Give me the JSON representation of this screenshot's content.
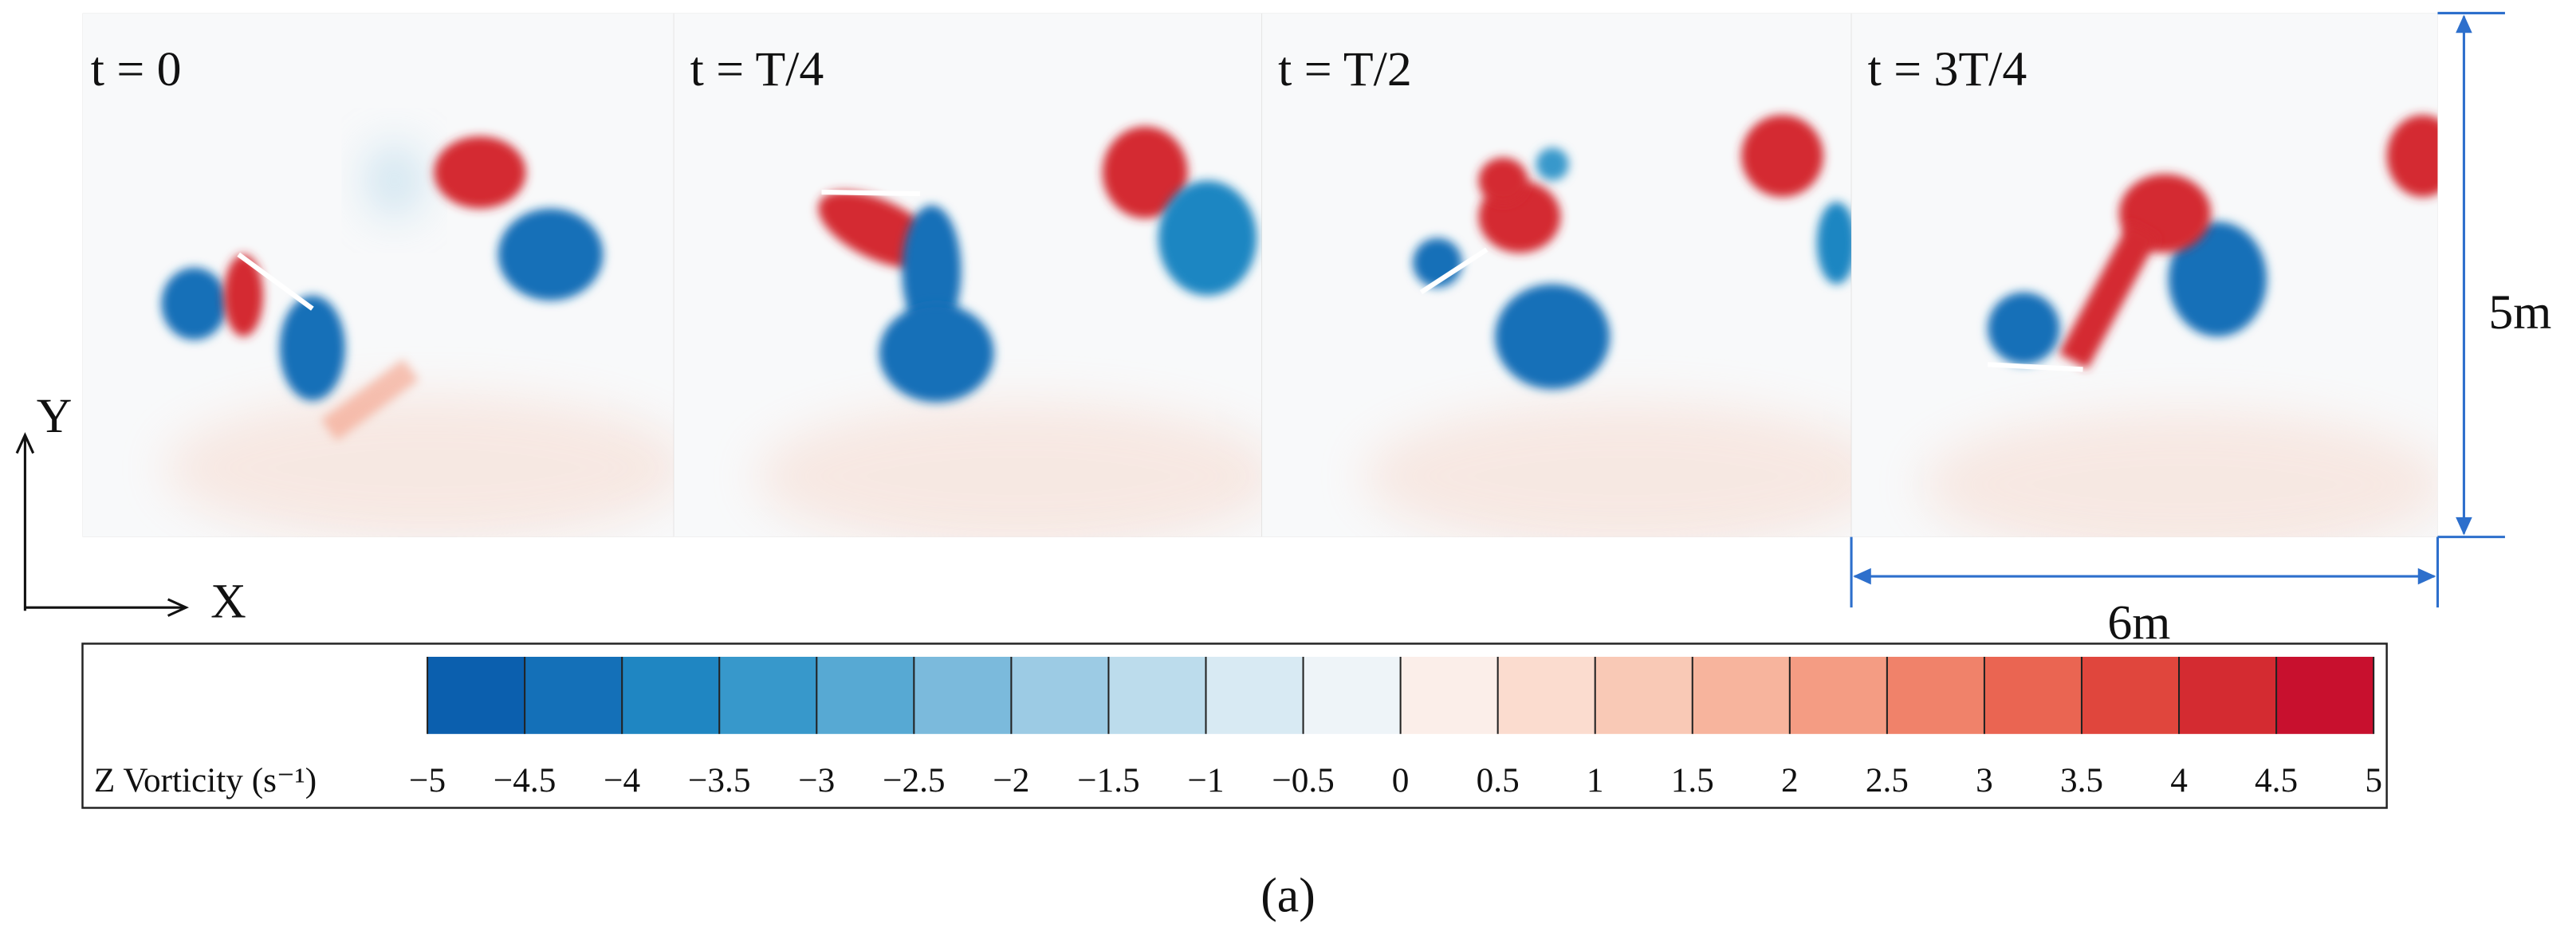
{
  "panels": [
    {
      "label": "t = 0"
    },
    {
      "label": "t = T/4"
    },
    {
      "label": "t = T/2"
    },
    {
      "label": "t = 3T/4"
    }
  ],
  "axes": {
    "x": "X",
    "y": "Y"
  },
  "dimensions": {
    "height": "5m",
    "width": "6m"
  },
  "colorbar": {
    "label": "Z Vorticity (s⁻¹)",
    "ticks": [
      {
        "value": -5,
        "label": "−5"
      },
      {
        "value": -4.5,
        "label": "−4.5"
      },
      {
        "value": -4,
        "label": "−4"
      },
      {
        "value": -3.5,
        "label": "−3.5"
      },
      {
        "value": -3,
        "label": "−3"
      },
      {
        "value": -2.5,
        "label": "−2.5"
      },
      {
        "value": -2,
        "label": "−2"
      },
      {
        "value": -1.5,
        "label": "−1.5"
      },
      {
        "value": -1,
        "label": "−1"
      },
      {
        "value": -0.5,
        "label": "−0.5"
      },
      0,
      0.5,
      1,
      1.5,
      2,
      2.5,
      3,
      3.5,
      4,
      4.5,
      5
    ],
    "colors": [
      "#0b5fae",
      "#1470b8",
      "#1f86c2",
      "#3798cb",
      "#57a9d3",
      "#7bbadc",
      "#9ccbe4",
      "#bcdcec",
      "#d8eaf3",
      "#eef4f8",
      "#fbeee9",
      "#fbdccf",
      "#f9c9b6",
      "#f7b49d",
      "#f49c83",
      "#f0826a",
      "#ea6552",
      "#e0463d",
      "#d42b31",
      "#c8102e"
    ]
  },
  "caption": "(a)"
}
